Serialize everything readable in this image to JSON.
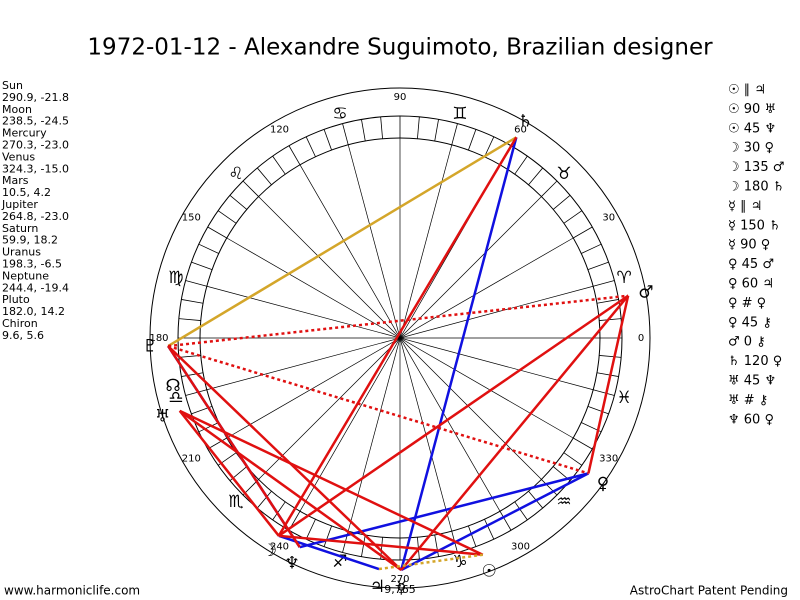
{
  "title": "1972-01-12 - Alexandre Suguimoto, Brazilian designer",
  "planets": [
    {
      "name": "Sun",
      "position": "290.9, -21.8",
      "glyph": "☉"
    },
    {
      "name": "Moon",
      "position": "238.5, -24.5",
      "glyph": "☽"
    },
    {
      "name": "Mercury",
      "position": "270.3, -23.0",
      "glyph": "☿"
    },
    {
      "name": "Venus",
      "position": "324.3, -15.0",
      "glyph": "♀"
    },
    {
      "name": "Mars",
      "position": "10.5, 4.2",
      "glyph": "♂"
    },
    {
      "name": "Jupiter",
      "position": "264.8, -23.0",
      "glyph": "♃"
    },
    {
      "name": "Saturn",
      "position": "59.9, 18.2",
      "glyph": "♄"
    },
    {
      "name": "Uranus",
      "position": "198.3, -6.5",
      "glyph": "♅"
    },
    {
      "name": "Neptune",
      "position": "244.4, -19.4",
      "glyph": "♆"
    },
    {
      "name": "Pluto",
      "position": "182.0, 14.2",
      "glyph": "♇"
    },
    {
      "name": "Chiron",
      "position": "9.6, 5.6"
    }
  ],
  "signs": [
    "♈",
    "♉",
    "♊",
    "♋",
    "♌",
    "♍",
    "♎",
    "♏",
    "♐",
    "♑",
    "♒",
    "♓"
  ],
  "degree_labels": [
    0,
    30,
    60,
    90,
    120,
    150,
    180,
    210,
    240,
    270,
    300,
    330
  ],
  "node_glyph": "☊",
  "extra_label": "9,765",
  "aspects": [
    "☉ ∥ ♃",
    "☉ 90 ♅",
    "☉ 45 ♆",
    "☽ 30 ♀",
    "☽ 135 ♂",
    "☽ 180 ♄",
    "☿ ∥ ♃",
    "☿ 150 ♄",
    "☿ 90 ♀",
    "♀ 45 ♂",
    "♀ 60 ♃",
    "♀ # ♀",
    "♀ 45 ⚷",
    "♂ 0 ⚷",
    "♄ 120 ♀",
    "♅ 45 ♆",
    "♅ # ⚷",
    "♆ 60 ♀"
  ],
  "footer": {
    "left": "www.harmoniclife.com",
    "right": "AstroChart Patent Pending"
  }
}
